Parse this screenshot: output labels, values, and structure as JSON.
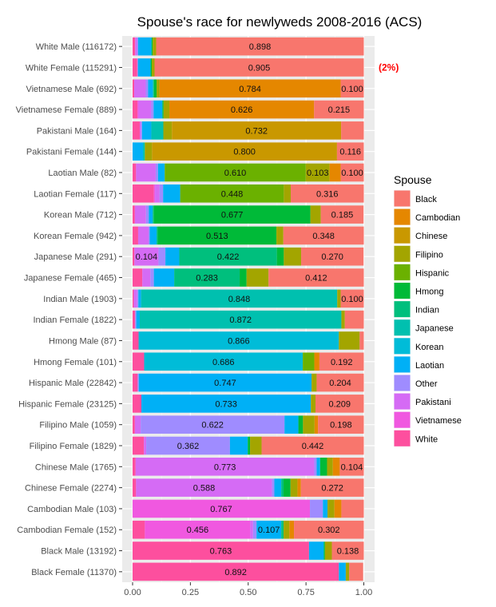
{
  "chart_data": {
    "type": "bar",
    "orientation": "horizontal",
    "stacked": true,
    "title": "Spouse's race for newlyweds 2008-2016 (ACS)",
    "xlim": [
      0,
      1
    ],
    "x_ticks": [
      "0.00",
      "0.25",
      "0.50",
      "0.75",
      "1.00"
    ],
    "grid": true,
    "legend": {
      "title": "Spouse",
      "placement": "right"
    },
    "series_names": [
      "Black",
      "Cambodian",
      "Chinese",
      "Filipino",
      "Hispanic",
      "Hmong",
      "Indian",
      "Japanese",
      "Korean",
      "Laotian",
      "Other",
      "Pakistani",
      "Vietnamese",
      "White"
    ],
    "colors": {
      "Black": "#F8766D",
      "Cambodian": "#E58700",
      "Chinese": "#C99800",
      "Filipino": "#A3A500",
      "Hispanic": "#6BB100",
      "Hmong": "#00BA38",
      "Indian": "#00BF7D",
      "Japanese": "#00C0AF",
      "Korean": "#00BCD8",
      "Laotian": "#00B0F6",
      "Other": "#9F8CFF",
      "Pakistani": "#D56BF5",
      "Vietnamese": "#F058E0",
      "White": "#FD4F9E"
    },
    "stack_order": [
      "White",
      "Vietnamese",
      "Pakistani",
      "Other",
      "Laotian",
      "Korean",
      "Japanese",
      "Indian",
      "Hmong",
      "Hispanic",
      "Filipino",
      "Chinese",
      "Cambodian",
      "Black"
    ],
    "categories": [
      "White Male (116172)",
      "White Female (115291)",
      "Vietnamese Male (692)",
      "Vietnamese Female (889)",
      "Pakistani Male (164)",
      "Pakistani Female (144)",
      "Laotian Male (82)",
      "Laotian Female (117)",
      "Korean Male (712)",
      "Korean Female (942)",
      "Japanese Male (291)",
      "Japanese Female (465)",
      "Indian Male (1903)",
      "Indian Female (1822)",
      "Hmong Male (87)",
      "Hmong Female (101)",
      "Hispanic Male (22842)",
      "Hispanic Female (23125)",
      "Filipino Male (1059)",
      "Filipino Female (1829)",
      "Chinese Male (1765)",
      "Chinese Female (2274)",
      "Cambodian Male (103)",
      "Cambodian Female (152)",
      "Black Male (13192)",
      "Black Female (11370)"
    ],
    "values": [
      [
        0.898,
        0,
        0,
        0.015,
        0,
        0.005,
        0,
        0,
        0,
        0.058,
        0.005,
        0.008,
        0,
        0.011
      ],
      [
        0.905,
        0,
        0,
        0.012,
        0,
        0.005,
        0,
        0,
        0,
        0.055,
        0,
        0.003,
        0,
        0.02
      ],
      [
        0.1,
        0.784,
        0,
        0.012,
        0,
        0.012,
        0,
        0.005,
        0,
        0.02,
        0.01,
        0.05,
        0,
        0.007
      ],
      [
        0.215,
        0.626,
        0,
        0.025,
        0,
        0.005,
        0,
        0,
        0,
        0.038,
        0.01,
        0.055,
        0.005,
        0.021
      ],
      [
        0.098,
        0,
        0.732,
        0.037,
        0,
        0,
        0,
        0.052,
        0,
        0.04,
        0.005,
        0.005,
        0,
        0.031
      ],
      [
        0.116,
        0,
        0.8,
        0.031,
        0,
        0,
        0,
        0.008,
        0,
        0.045,
        0,
        0,
        0,
        0
      ],
      [
        0.1,
        0.048,
        0,
        0.103,
        0.61,
        0,
        0,
        0,
        0,
        0.029,
        0.01,
        0.085,
        0,
        0.015
      ],
      [
        0.316,
        0,
        0,
        0.03,
        0.448,
        0,
        0,
        0,
        0,
        0.074,
        0.015,
        0.02,
        0.005,
        0.092
      ],
      [
        0.185,
        0,
        0,
        0.045,
        0,
        0.677,
        0.005,
        0,
        0,
        0.017,
        0.012,
        0.048,
        0,
        0.01
      ],
      [
        0.348,
        0,
        0,
        0.03,
        0,
        0.513,
        0.005,
        0,
        0,
        0.03,
        0.005,
        0.045,
        0,
        0.024
      ],
      [
        0.27,
        0,
        0,
        0.075,
        0,
        0.03,
        0.422,
        0,
        0,
        0.06,
        0.03,
        0.104,
        0,
        0.008
      ],
      [
        0.412,
        0,
        0,
        0.095,
        0,
        0.03,
        0.283,
        0,
        0,
        0.088,
        0.015,
        0.035,
        0,
        0.042
      ],
      [
        0.1,
        0,
        0,
        0.015,
        0,
        0,
        0,
        0.848,
        0,
        0.012,
        0.005,
        0.015,
        0,
        0.005
      ],
      [
        0.082,
        0,
        0,
        0.015,
        0,
        0,
        0,
        0.872,
        0,
        0.015,
        0.005,
        0,
        0,
        0.011
      ],
      [
        0.018,
        0,
        0,
        0.09,
        0,
        0,
        0,
        0,
        0.866,
        0,
        0,
        0,
        0,
        0.026
      ],
      [
        0.192,
        0.022,
        0,
        0,
        0.05,
        0,
        0,
        0,
        0.686,
        0,
        0,
        0,
        0,
        0.05
      ],
      [
        0.204,
        0,
        0,
        0.022,
        0,
        0,
        0,
        0,
        0,
        0.747,
        0.005,
        0,
        0,
        0.022
      ],
      [
        0.209,
        0,
        0,
        0.02,
        0,
        0,
        0,
        0,
        0,
        0.733,
        0,
        0,
        0,
        0.038
      ],
      [
        0.198,
        0.015,
        0,
        0.05,
        0,
        0.02,
        0,
        0,
        0,
        0.06,
        0.622,
        0.025,
        0,
        0.01
      ],
      [
        0.442,
        0,
        0,
        0.05,
        0,
        0.01,
        0,
        0,
        0,
        0.077,
        0.362,
        0.01,
        0,
        0.049
      ],
      [
        0.104,
        0.03,
        0,
        0.025,
        0,
        0.03,
        0,
        0,
        0,
        0.015,
        0.01,
        0.773,
        0,
        0.013
      ],
      [
        0.272,
        0.015,
        0,
        0.03,
        0,
        0.03,
        0.01,
        0,
        0,
        0.03,
        0.01,
        0.588,
        0,
        0.015
      ],
      [
        0.097,
        0.03,
        0,
        0.03,
        0,
        0,
        0,
        0,
        0,
        0.02,
        0.056,
        0,
        0.767,
        0
      ],
      [
        0.302,
        0.02,
        0,
        0.025,
        0,
        0,
        0.01,
        0,
        0,
        0.107,
        0.015,
        0.012,
        0.456,
        0.053
      ],
      [
        0.138,
        0,
        0,
        0.03,
        0,
        0.005,
        0,
        0,
        0,
        0.064,
        0,
        0,
        0,
        0.763
      ],
      [
        0.06,
        0,
        0,
        0.015,
        0,
        0,
        0,
        0,
        0,
        0.03,
        0,
        0,
        0,
        0.892
      ]
    ],
    "annotations": [
      {
        "category": "White Female (115291)",
        "text": "(2%)",
        "color": "#FF0000"
      }
    ]
  }
}
